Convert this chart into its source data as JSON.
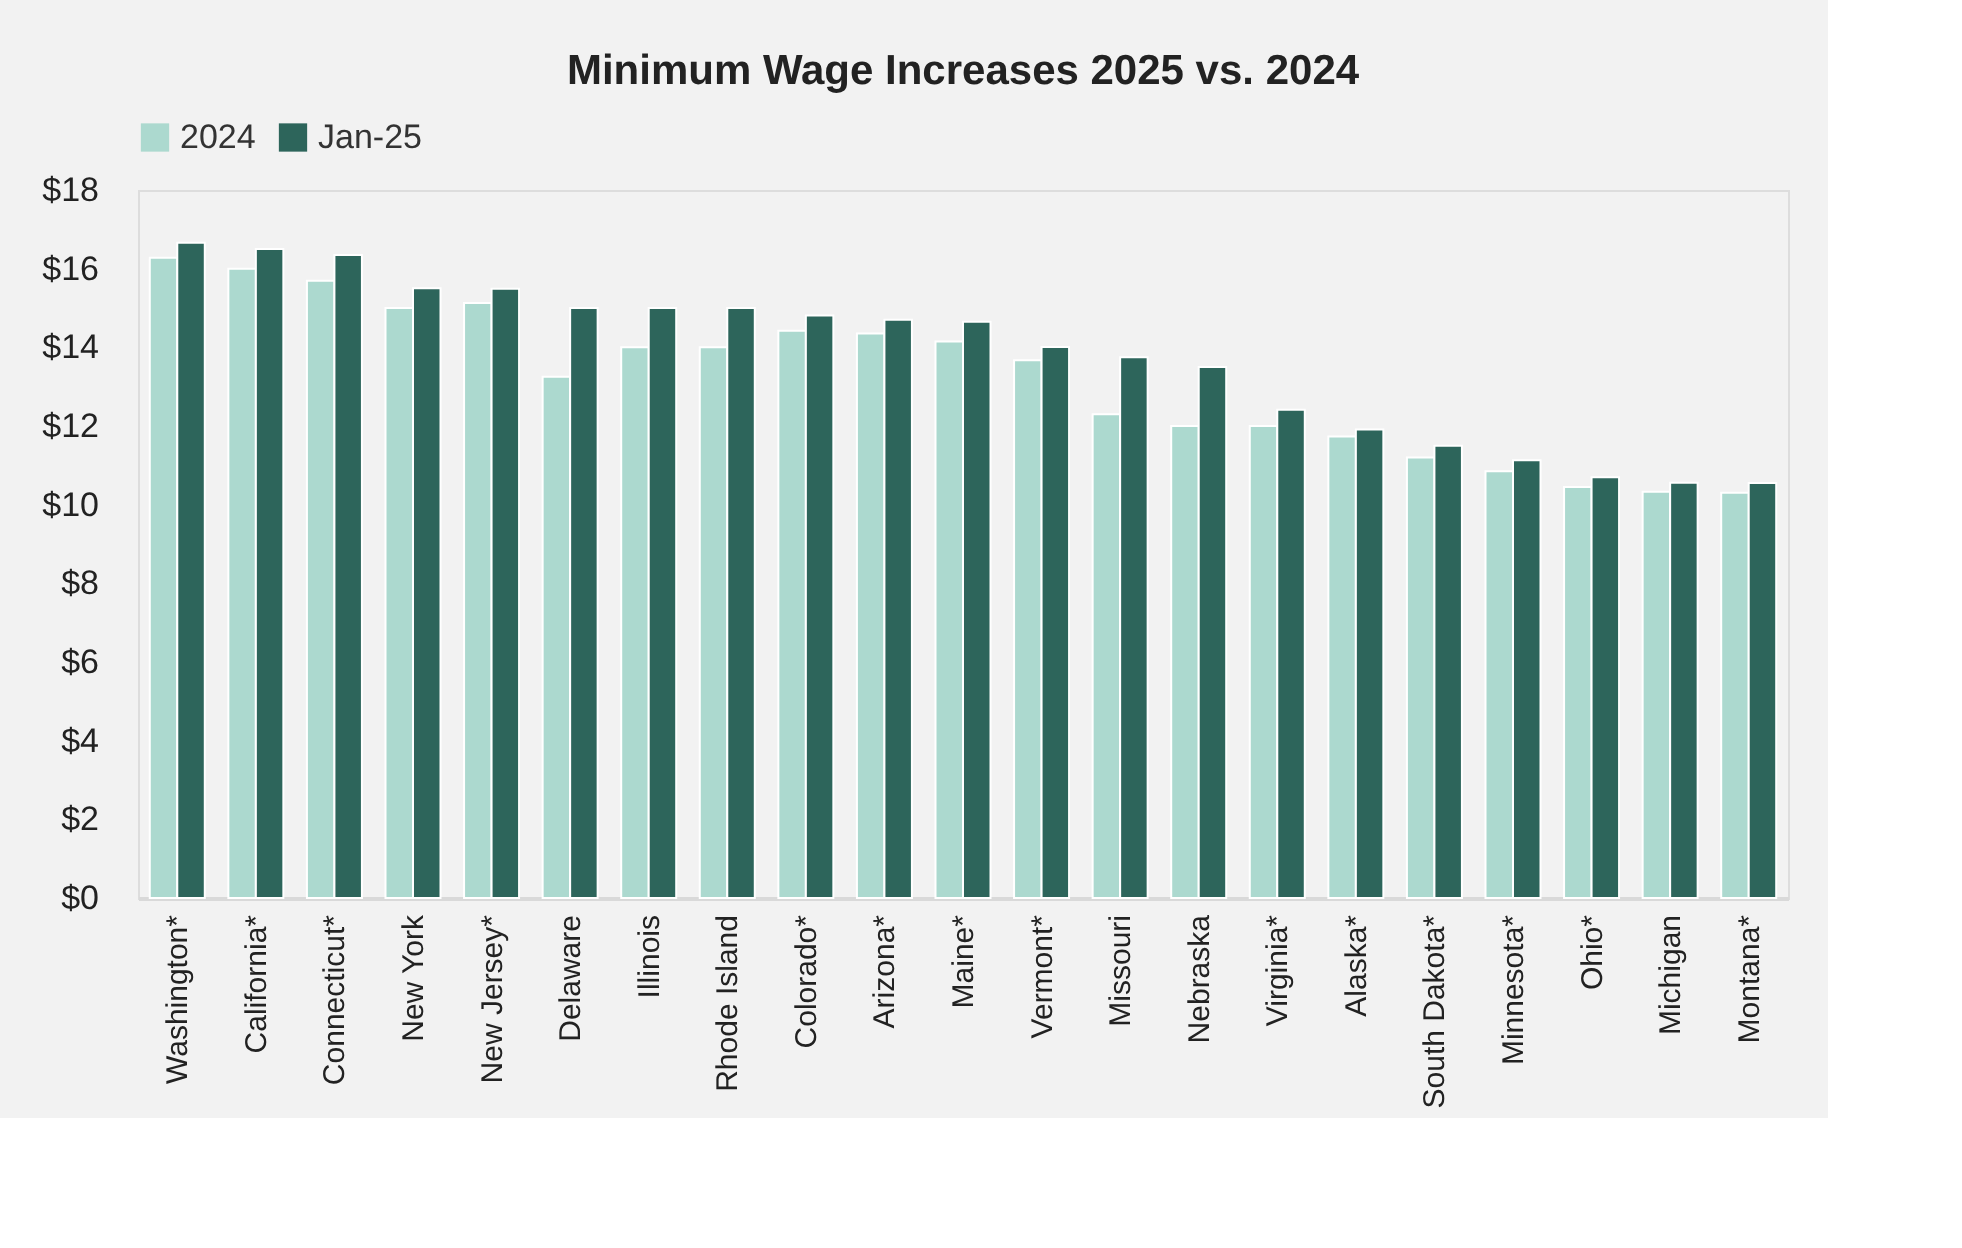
{
  "chart_data": {
    "type": "bar",
    "title": "Minimum Wage Increases 2025 vs. 2024",
    "categories": [
      "Washington*",
      "California*",
      "Connecticut*",
      "New York",
      "New Jersey*",
      "Delaware",
      "Illinois",
      "Rhode Island",
      "Colorado*",
      "Arizona*",
      "Maine*",
      "Vermont*",
      "Missouri",
      "Nebraska",
      "Virginia*",
      "Alaska*",
      "South Dakota*",
      "Minnesota*",
      "Ohio*",
      "Michigan",
      "Montana*"
    ],
    "series": [
      {
        "name": "2024",
        "color": "#acd9cf",
        "values": [
          16.28,
          16.0,
          15.69,
          15.0,
          15.13,
          13.25,
          14.0,
          14.0,
          14.42,
          14.35,
          14.15,
          13.67,
          12.3,
          12.0,
          12.0,
          11.73,
          11.2,
          10.85,
          10.45,
          10.33,
          10.3
        ]
      },
      {
        "name": "Jan-25",
        "color": "#2d655b",
        "values": [
          16.66,
          16.5,
          16.35,
          15.5,
          15.49,
          15.0,
          15.0,
          15.0,
          14.81,
          14.7,
          14.65,
          14.01,
          13.75,
          13.5,
          12.41,
          11.91,
          11.5,
          11.13,
          10.7,
          10.56,
          10.55
        ]
      }
    ],
    "ylim": [
      0,
      18
    ],
    "yticks": [
      {
        "value": 0,
        "label": "$0"
      },
      {
        "value": 2,
        "label": "$2"
      },
      {
        "value": 4,
        "label": "$4"
      },
      {
        "value": 6,
        "label": "$6"
      },
      {
        "value": 8,
        "label": "$8"
      },
      {
        "value": 10,
        "label": "$10"
      },
      {
        "value": 12,
        "label": "$12"
      },
      {
        "value": 14,
        "label": "$14"
      },
      {
        "value": 16,
        "label": "$16"
      },
      {
        "value": 18,
        "label": "$18"
      }
    ],
    "grid": false,
    "legend": "top"
  }
}
